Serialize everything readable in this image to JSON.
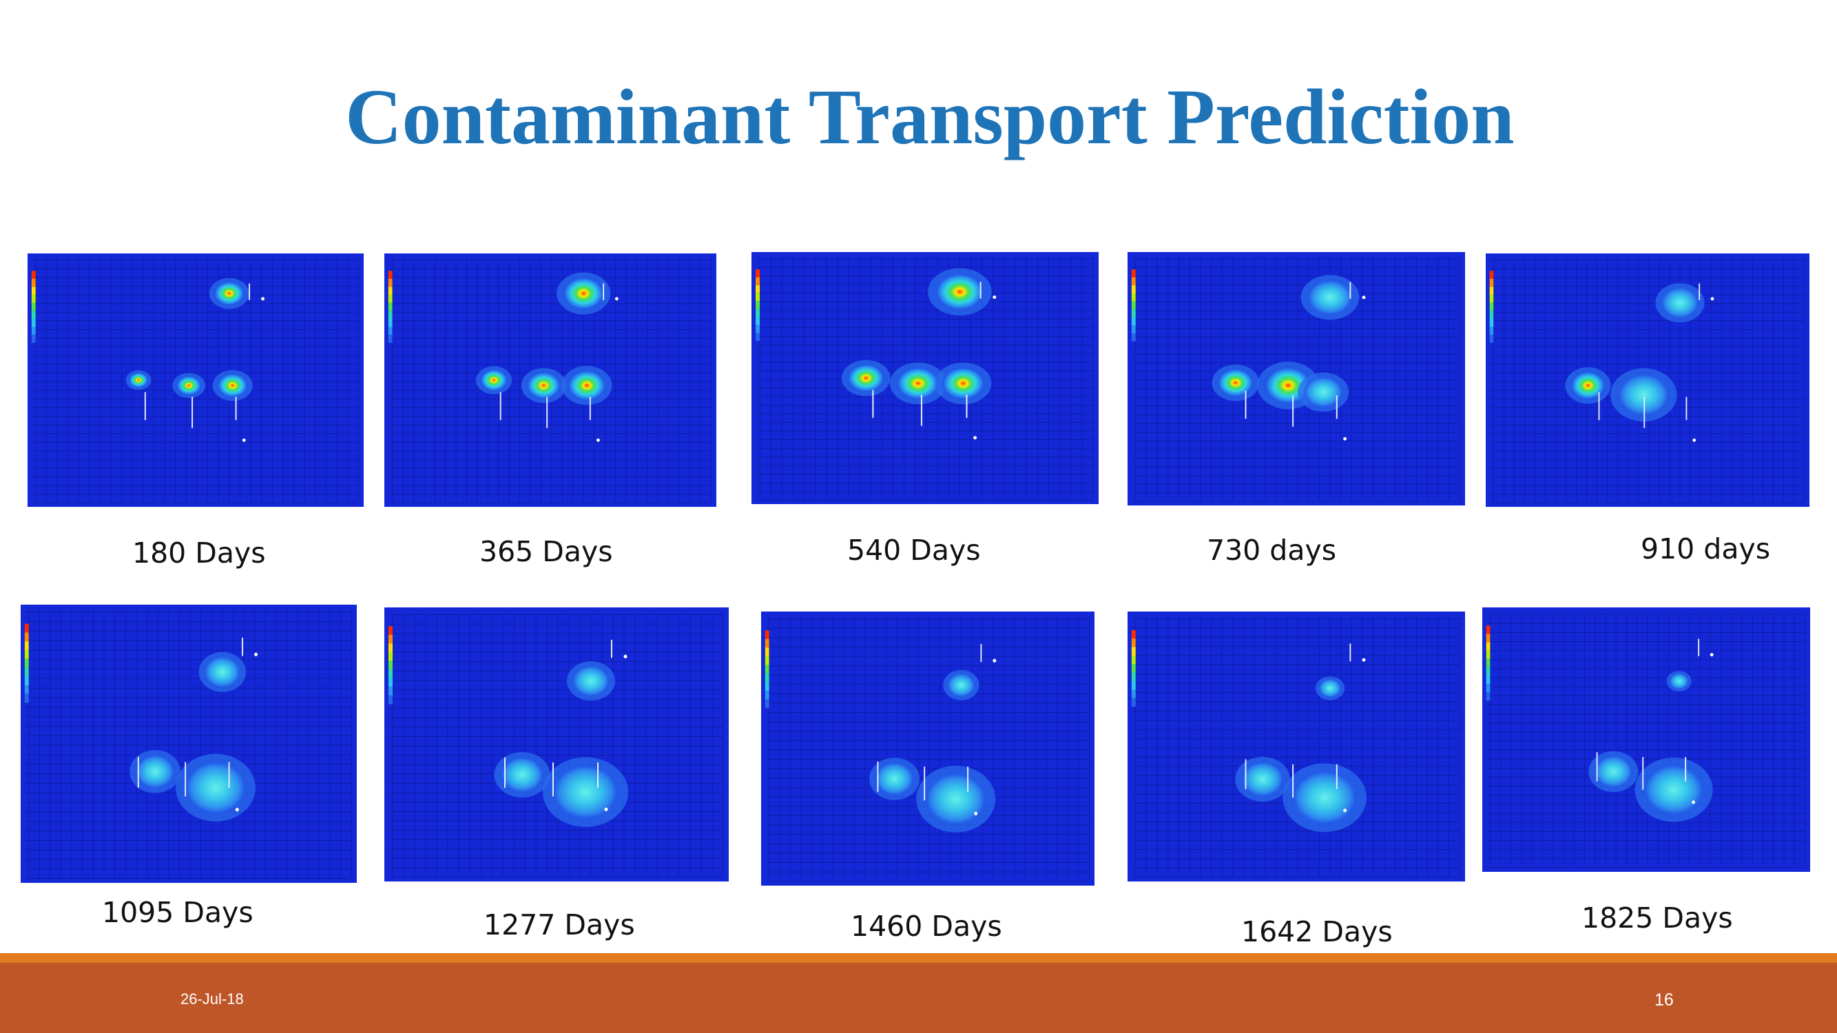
{
  "slide": {
    "title": "Contaminant Transport Prediction",
    "footer_date": "26-Jul-18",
    "page_number": "16"
  },
  "colors": {
    "title": "#1f74b8",
    "model_background": "#1428d8",
    "grid_line": "#0a1a8c",
    "footer_orange": "#e07b1f",
    "footer_rust": "#bf5627"
  },
  "panels": [
    {
      "caption": "180 Days",
      "stage": 0
    },
    {
      "caption": "365 Days",
      "stage": 1
    },
    {
      "caption": "540 Days",
      "stage": 2
    },
    {
      "caption": "730 days",
      "stage": 3
    },
    {
      "caption": "910 days",
      "stage": 4
    },
    {
      "caption": "1095 Days",
      "stage": 5
    },
    {
      "caption": "1277 Days",
      "stage": 6
    },
    {
      "caption": "1460 Days",
      "stage": 7
    },
    {
      "caption": "1642 Days",
      "stage": 8
    },
    {
      "caption": "1825 Days",
      "stage": 9
    }
  ]
}
